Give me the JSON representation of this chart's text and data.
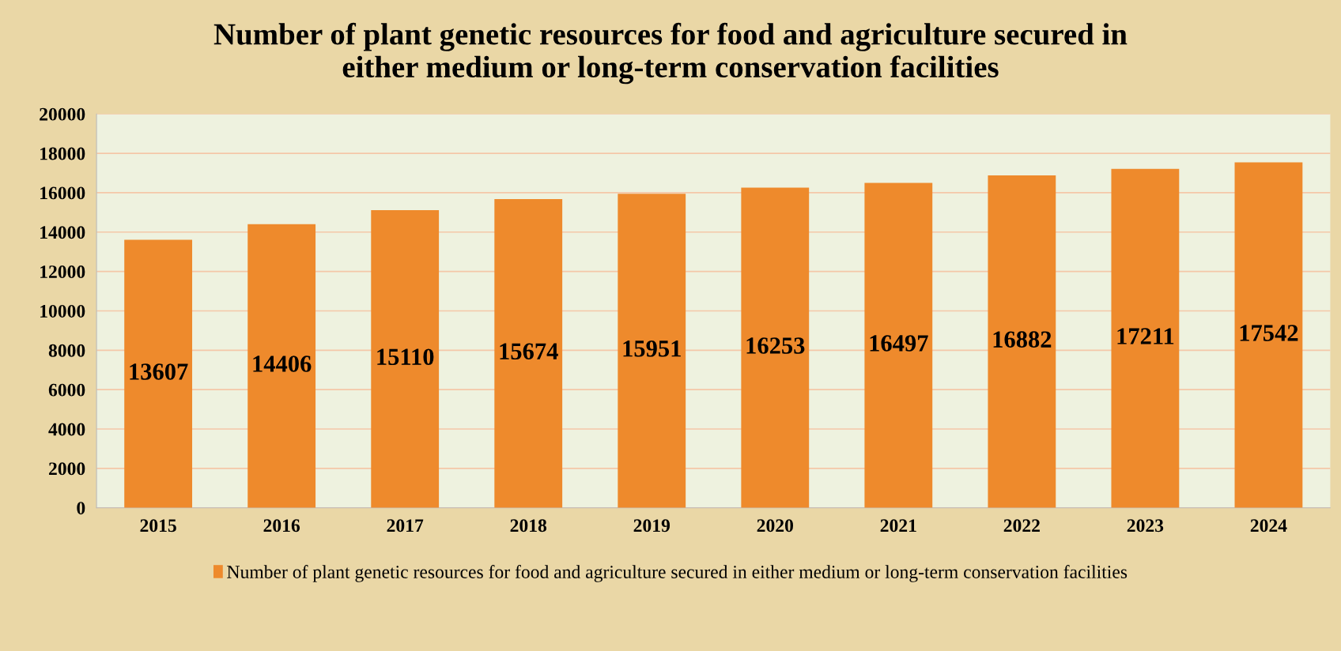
{
  "chart_data": {
    "type": "bar",
    "title": "Number of plant genetic resources for food and agriculture secured in\neither medium or long-term conservation facilities",
    "categories": [
      "2015",
      "2016",
      "2017",
      "2018",
      "2019",
      "2020",
      "2021",
      "2022",
      "2023",
      "2024"
    ],
    "series": [
      {
        "name": "Number of plant genetic resources for food and agriculture secured in either medium or long-term conservation facilities",
        "color": "#ee8a2c",
        "values": [
          13607,
          14406,
          15110,
          15674,
          15951,
          16253,
          16497,
          16882,
          17211,
          17542
        ]
      }
    ],
    "ylim": [
      0,
      20000
    ],
    "yticks": [
      0,
      2000,
      4000,
      6000,
      8000,
      10000,
      12000,
      14000,
      16000,
      18000,
      20000
    ],
    "grid": "y",
    "legend": "bottom",
    "data_labels": true
  }
}
